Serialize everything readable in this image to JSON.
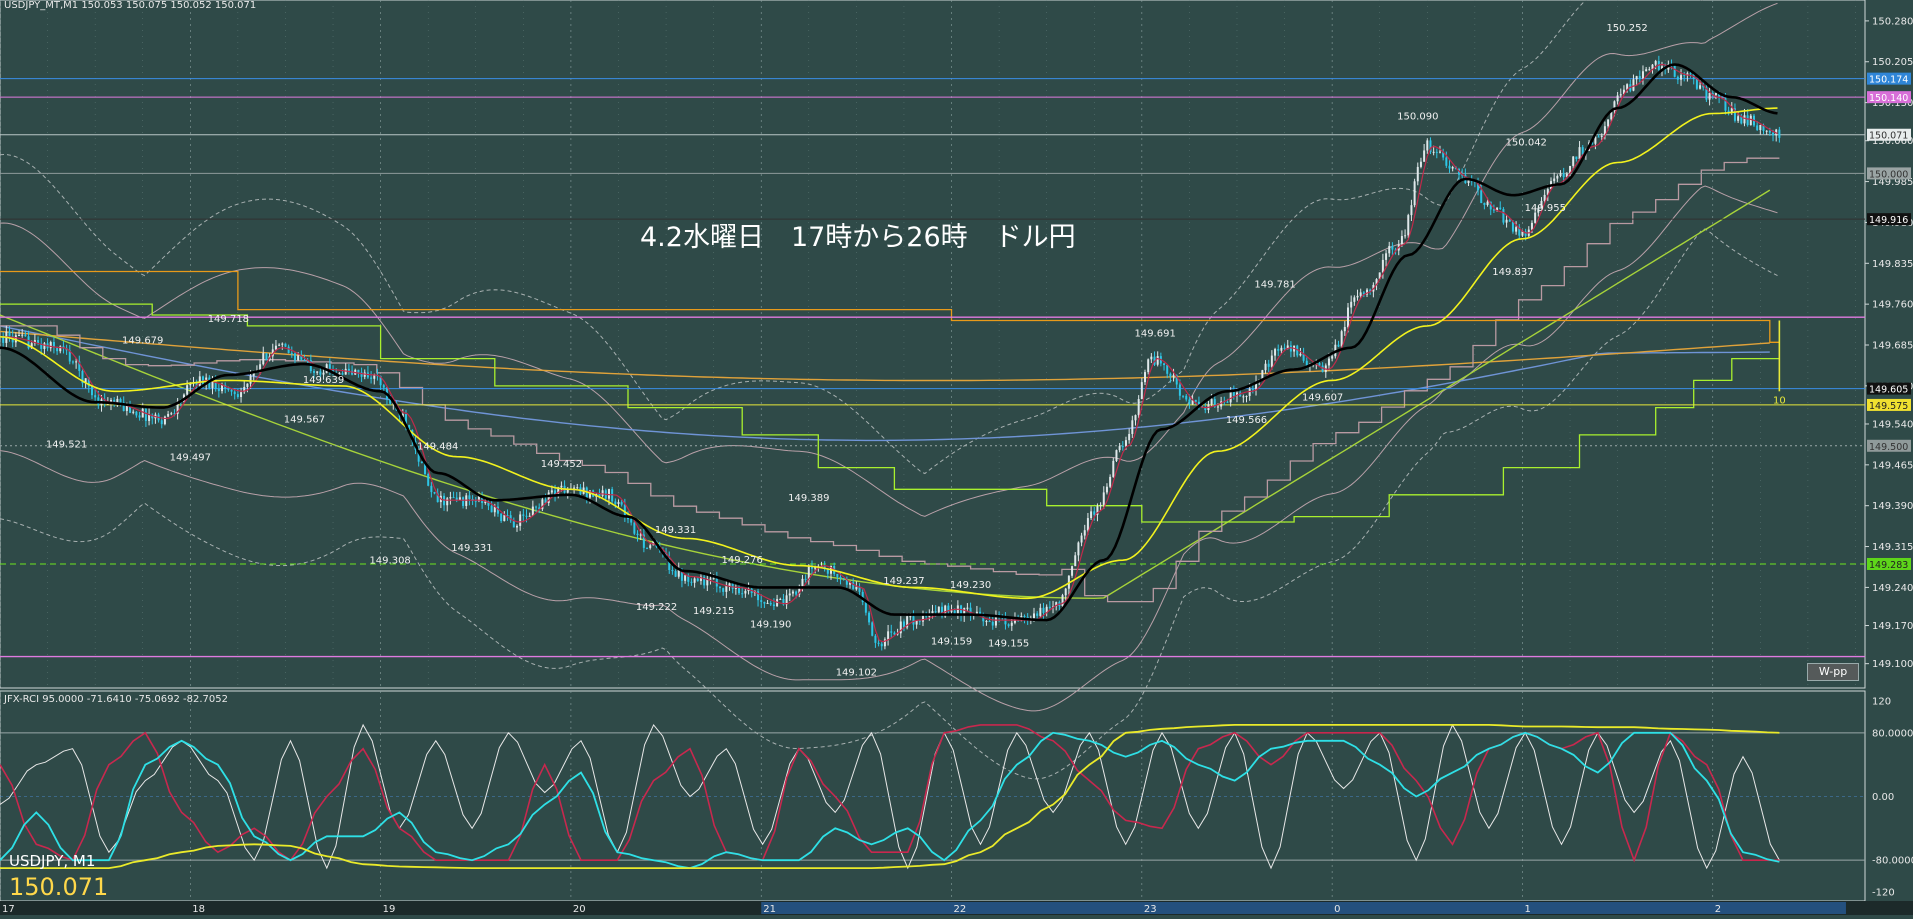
{
  "header": {
    "main": "USDJPY_MT,M1  150.053 150.075 150.052 150.071",
    "sub": "JFX-RCI 95.0000 -71.6410 -75.0692 -82.7052"
  },
  "annotation": "4.2水曜日　17時から26時　ドル円",
  "wpp_label": "W-pp",
  "symbol_label": "USDJPY, M1",
  "current_price_label": "150.071",
  "colors": {
    "background": "#2f4a48",
    "candle_up": "#dfe8ea",
    "candle_down": "#2ec6e6",
    "ma_black": "#000000",
    "ma_yellow": "#f2f21e",
    "ma_red": "#c02a4a",
    "ma_green": "#a6d33a",
    "ma_blue": "#6f94d6",
    "ma_orange": "#e0a23a",
    "stair_gray": "#b99aa2",
    "stair_lime": "#a9f02e",
    "stair_orange": "#e89a1a",
    "level_magenta": "#e07ae0",
    "level_blue": "#3a8ee6",
    "level_yellow": "#e8e83a",
    "level_green": "#6ee61e",
    "rci_white": "#e8e8e8",
    "rci_red": "#c8284e",
    "rci_cyan": "#2ee0e6",
    "rci_yellow": "#eaea2a"
  },
  "chart_data": [
    {
      "type": "candlestick",
      "ylim": [
        149.07,
        150.3
      ],
      "x_tick_labels": [
        "17",
        "18",
        "19",
        "20",
        "21",
        "22",
        "23",
        "0",
        "1",
        "2"
      ],
      "y_tick_labels": [
        "150.280",
        "150.205",
        "150.130",
        "150.060",
        "149.985",
        "149.910",
        "149.835",
        "149.760",
        "149.685",
        "149.610",
        "149.540",
        "149.465",
        "149.390",
        "149.315",
        "149.240",
        "149.170",
        "149.100"
      ],
      "price_path": [
        {
          "x": 17.0,
          "y": 149.7
        },
        {
          "x": 17.3,
          "y": 149.68
        },
        {
          "x": 17.55,
          "y": 149.58
        },
        {
          "x": 17.85,
          "y": 149.55
        },
        {
          "x": 18.05,
          "y": 149.62
        },
        {
          "x": 18.25,
          "y": 149.6
        },
        {
          "x": 18.45,
          "y": 149.68
        },
        {
          "x": 18.7,
          "y": 149.64
        },
        {
          "x": 18.95,
          "y": 149.63
        },
        {
          "x": 19.1,
          "y": 149.56
        },
        {
          "x": 19.3,
          "y": 149.4
        },
        {
          "x": 19.5,
          "y": 149.4
        },
        {
          "x": 19.7,
          "y": 149.36
        },
        {
          "x": 19.95,
          "y": 149.42
        },
        {
          "x": 20.2,
          "y": 149.41
        },
        {
          "x": 20.4,
          "y": 149.32
        },
        {
          "x": 20.6,
          "y": 149.26
        },
        {
          "x": 20.85,
          "y": 149.24
        },
        {
          "x": 21.1,
          "y": 149.21
        },
        {
          "x": 21.3,
          "y": 149.28
        },
        {
          "x": 21.5,
          "y": 149.24
        },
        {
          "x": 21.6,
          "y": 149.14
        },
        {
          "x": 21.8,
          "y": 149.18
        },
        {
          "x": 22.0,
          "y": 149.2
        },
        {
          "x": 22.2,
          "y": 149.18
        },
        {
          "x": 22.4,
          "y": 149.18
        },
        {
          "x": 22.55,
          "y": 149.21
        },
        {
          "x": 22.75,
          "y": 149.38
        },
        {
          "x": 22.9,
          "y": 149.5
        },
        {
          "x": 23.05,
          "y": 149.66
        },
        {
          "x": 23.3,
          "y": 149.57
        },
        {
          "x": 23.55,
          "y": 149.6
        },
        {
          "x": 23.75,
          "y": 149.68
        },
        {
          "x": 23.95,
          "y": 149.64
        },
        {
          "x": 24.15,
          "y": 149.78
        },
        {
          "x": 24.35,
          "y": 149.87
        },
        {
          "x": 24.5,
          "y": 150.05
        },
        {
          "x": 24.7,
          "y": 149.99
        },
        {
          "x": 24.85,
          "y": 149.93
        },
        {
          "x": 25.0,
          "y": 149.89
        },
        {
          "x": 25.15,
          "y": 149.98
        },
        {
          "x": 25.35,
          "y": 150.05
        },
        {
          "x": 25.55,
          "y": 150.16
        },
        {
          "x": 25.7,
          "y": 150.2
        },
        {
          "x": 25.85,
          "y": 150.18
        },
        {
          "x": 26.0,
          "y": 150.14
        },
        {
          "x": 26.15,
          "y": 150.1
        },
        {
          "x": 26.35,
          "y": 150.07
        }
      ],
      "price_labels": [
        {
          "x": 17.35,
          "y": 149.521,
          "text": "149.521"
        },
        {
          "x": 17.75,
          "y": 149.679,
          "text": "149.679"
        },
        {
          "x": 18.0,
          "y": 149.497,
          "text": "149.497"
        },
        {
          "x": 18.2,
          "y": 149.718,
          "text": "149.718"
        },
        {
          "x": 18.6,
          "y": 149.567,
          "text": "149.567"
        },
        {
          "x": 18.7,
          "y": 149.639,
          "text": "149.639"
        },
        {
          "x": 19.05,
          "y": 149.308,
          "text": "149.308"
        },
        {
          "x": 19.3,
          "y": 149.484,
          "text": "149.484"
        },
        {
          "x": 19.48,
          "y": 149.331,
          "text": "149.331"
        },
        {
          "x": 19.95,
          "y": 149.452,
          "text": "149.452"
        },
        {
          "x": 20.45,
          "y": 149.222,
          "text": "149.222"
        },
        {
          "x": 20.55,
          "y": 149.331,
          "text": "149.331"
        },
        {
          "x": 20.75,
          "y": 149.215,
          "text": "149.215"
        },
        {
          "x": 20.9,
          "y": 149.276,
          "text": "149.276"
        },
        {
          "x": 21.05,
          "y": 149.19,
          "text": "149.190"
        },
        {
          "x": 21.25,
          "y": 149.389,
          "text": "149.389"
        },
        {
          "x": 21.5,
          "y": 149.102,
          "text": "149.102"
        },
        {
          "x": 21.75,
          "y": 149.237,
          "text": "149.237"
        },
        {
          "x": 22.0,
          "y": 149.159,
          "text": "149.159"
        },
        {
          "x": 22.1,
          "y": 149.23,
          "text": "149.230"
        },
        {
          "x": 22.3,
          "y": 149.155,
          "text": "149.155"
        },
        {
          "x": 23.07,
          "y": 149.691,
          "text": "149.691"
        },
        {
          "x": 23.55,
          "y": 149.566,
          "text": "149.566"
        },
        {
          "x": 23.7,
          "y": 149.781,
          "text": "149.781"
        },
        {
          "x": 23.95,
          "y": 149.607,
          "text": "149.607"
        },
        {
          "x": 24.45,
          "y": 150.09,
          "text": "150.090"
        },
        {
          "x": 24.95,
          "y": 149.837,
          "text": "149.837"
        },
        {
          "x": 25.02,
          "y": 150.042,
          "text": "150.042"
        },
        {
          "x": 25.12,
          "y": 149.955,
          "text": "149.955"
        },
        {
          "x": 25.55,
          "y": 150.252,
          "text": "150.252"
        }
      ],
      "ma_fast_path": [
        {
          "x": 17.0,
          "y": 149.68
        },
        {
          "x": 17.5,
          "y": 149.58
        },
        {
          "x": 17.85,
          "y": 149.57
        },
        {
          "x": 18.2,
          "y": 149.63
        },
        {
          "x": 18.6,
          "y": 149.65
        },
        {
          "x": 19.0,
          "y": 149.6
        },
        {
          "x": 19.3,
          "y": 149.45
        },
        {
          "x": 19.6,
          "y": 149.4
        },
        {
          "x": 20.0,
          "y": 149.41
        },
        {
          "x": 20.3,
          "y": 149.37
        },
        {
          "x": 20.6,
          "y": 149.27
        },
        {
          "x": 21.0,
          "y": 149.24
        },
        {
          "x": 21.4,
          "y": 149.24
        },
        {
          "x": 21.7,
          "y": 149.19
        },
        {
          "x": 22.1,
          "y": 149.19
        },
        {
          "x": 22.5,
          "y": 149.18
        },
        {
          "x": 22.8,
          "y": 149.29
        },
        {
          "x": 23.1,
          "y": 149.53
        },
        {
          "x": 23.45,
          "y": 149.6
        },
        {
          "x": 23.8,
          "y": 149.64
        },
        {
          "x": 24.1,
          "y": 149.68
        },
        {
          "x": 24.4,
          "y": 149.85
        },
        {
          "x": 24.7,
          "y": 149.99
        },
        {
          "x": 24.95,
          "y": 149.96
        },
        {
          "x": 25.2,
          "y": 149.98
        },
        {
          "x": 25.5,
          "y": 150.12
        },
        {
          "x": 25.8,
          "y": 150.2
        },
        {
          "x": 26.1,
          "y": 150.14
        },
        {
          "x": 26.35,
          "y": 150.11
        }
      ],
      "ma_slow_path": [
        {
          "x": 17.0,
          "y": 149.7
        },
        {
          "x": 17.6,
          "y": 149.6
        },
        {
          "x": 18.2,
          "y": 149.62
        },
        {
          "x": 18.8,
          "y": 149.61
        },
        {
          "x": 19.4,
          "y": 149.48
        },
        {
          "x": 20.0,
          "y": 149.42
        },
        {
          "x": 20.6,
          "y": 149.33
        },
        {
          "x": 21.2,
          "y": 149.28
        },
        {
          "x": 21.8,
          "y": 149.24
        },
        {
          "x": 22.4,
          "y": 149.22
        },
        {
          "x": 22.9,
          "y": 149.29
        },
        {
          "x": 23.4,
          "y": 149.49
        },
        {
          "x": 24.0,
          "y": 149.62
        },
        {
          "x": 24.5,
          "y": 149.72
        },
        {
          "x": 25.0,
          "y": 149.88
        },
        {
          "x": 25.5,
          "y": 150.02
        },
        {
          "x": 26.0,
          "y": 150.11
        },
        {
          "x": 26.35,
          "y": 150.12
        }
      ],
      "horizontal_levels": [
        {
          "y": 150.174,
          "label": "150.174"
        },
        {
          "y": 150.14,
          "label": "150.140"
        },
        {
          "y": 150.071,
          "label": "150.071"
        },
        {
          "y": 150.0,
          "label": "150.000"
        },
        {
          "y": 149.916,
          "label": "149.916"
        },
        {
          "y": 149.605,
          "label": "149.605"
        },
        {
          "y": 149.575,
          "label": "149.575"
        },
        {
          "y": 149.5,
          "label": "149.500"
        },
        {
          "y": 149.283,
          "label": "149.283"
        }
      ],
      "marker_value": "10"
    },
    {
      "type": "line",
      "indicator": "JFX-RCI",
      "ylim": [
        -125,
        125
      ],
      "y_tick_labels": [
        "120",
        "80.0000",
        "0.00",
        "-80.0000",
        "-120"
      ],
      "series": [
        {
          "values": [
            -10,
            40,
            60,
            -70,
            20,
            70,
            20,
            -80,
            70,
            -90,
            90,
            -40,
            70,
            -40,
            80,
            5,
            70,
            -70,
            90,
            0,
            60,
            -60,
            60,
            -20,
            80,
            -90,
            80,
            -60,
            80,
            -20,
            80,
            -60,
            80,
            -40,
            80,
            -90,
            80,
            10,
            80,
            -80,
            90,
            -40,
            80,
            -60,
            80,
            -20,
            70,
            -90,
            50,
            -80
          ]
        },
        {
          "values": [
            40,
            -60,
            -80,
            40,
            80,
            -20,
            -70,
            -40,
            -80,
            0,
            60,
            -40,
            -80,
            -80,
            -80,
            40,
            -80,
            -80,
            20,
            60,
            -70,
            -80,
            60,
            0,
            -70,
            -70,
            80,
            90,
            90,
            70,
            20,
            -30,
            -40,
            60,
            80,
            40,
            80,
            80,
            80,
            20,
            -60,
            60,
            80,
            60,
            80,
            -80,
            80,
            40,
            -80,
            -80
          ]
        },
        {
          "values": [
            -80,
            -20,
            -80,
            -80,
            40,
            70,
            40,
            -50,
            -80,
            -50,
            -50,
            -20,
            -70,
            -80,
            -60,
            -10,
            30,
            -70,
            -80,
            -90,
            -70,
            -80,
            -80,
            -40,
            -60,
            -40,
            -80,
            -30,
            40,
            80,
            70,
            50,
            70,
            40,
            20,
            60,
            70,
            70,
            40,
            0,
            30,
            60,
            80,
            60,
            30,
            80,
            80,
            20,
            -70,
            -82
          ]
        },
        {
          "values": [
            -90,
            -90,
            -90,
            -90,
            -80,
            -70,
            -62,
            -60,
            -62,
            -75,
            -85,
            -88,
            -89,
            -90,
            -90,
            -90,
            -90,
            -90,
            -90,
            -90,
            -90,
            -90,
            -90,
            -90,
            -90,
            -88,
            -85,
            -70,
            -40,
            -10,
            40,
            80,
            85,
            88,
            90,
            90,
            90,
            90,
            90,
            90,
            90,
            90,
            88,
            88,
            87,
            87,
            85,
            84,
            82,
            80
          ]
        }
      ]
    }
  ]
}
